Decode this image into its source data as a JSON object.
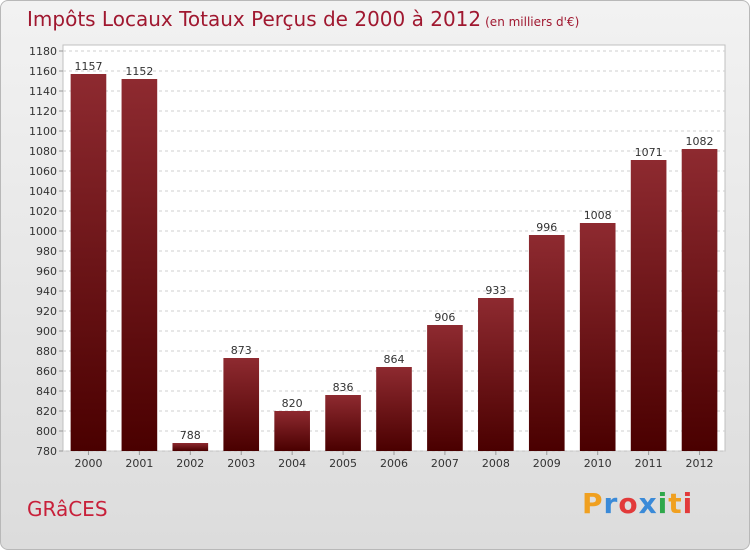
{
  "title": "Impôts Locaux Totaux Perçus de 2000 à 2012",
  "subtitle": "(en milliers d'€)",
  "place": "GRâCES",
  "logo": {
    "letters": [
      "P",
      "r",
      "o",
      "x",
      "i",
      "t",
      "i"
    ],
    "colors": [
      "#f0a020",
      "#3a8ad8",
      "#e23a3a",
      "#3a8ad8",
      "#2ea84a",
      "#f0a020",
      "#e23a3a"
    ]
  },
  "chart_data": {
    "type": "bar",
    "categories": [
      "2000",
      "2001",
      "2002",
      "2003",
      "2004",
      "2005",
      "2006",
      "2007",
      "2008",
      "2009",
      "2010",
      "2011",
      "2012"
    ],
    "values": [
      1157,
      1152,
      788,
      873,
      820,
      836,
      864,
      906,
      933,
      996,
      1008,
      1071,
      1082
    ],
    "ylim": [
      780,
      1180
    ],
    "ytick_step": 20,
    "grid": true,
    "bar_color_top": "#8e2a30",
    "bar_color_bottom": "#4a0000"
  }
}
